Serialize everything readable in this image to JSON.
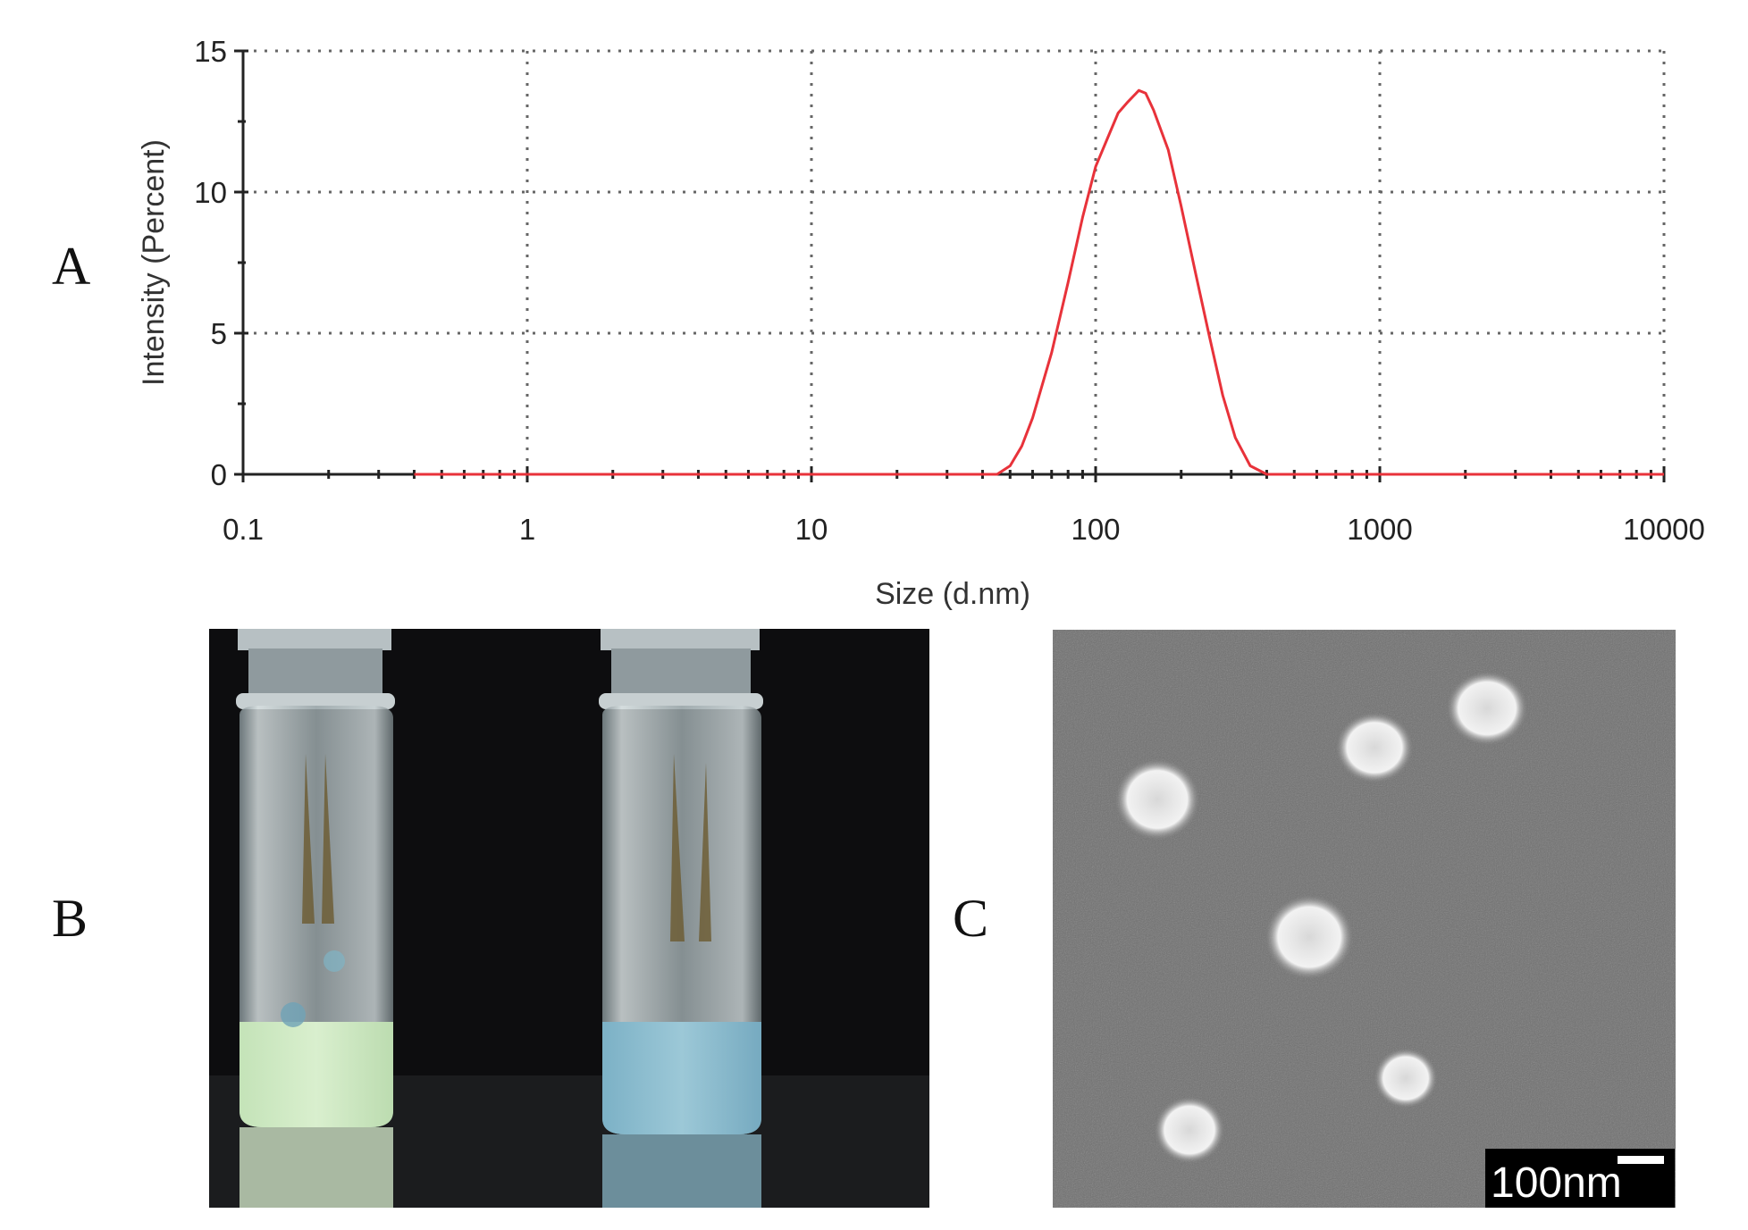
{
  "panels": {
    "a": "A",
    "b": "B",
    "c": "C"
  },
  "chart_data": {
    "type": "line",
    "title": "",
    "xlabel": "Size (d.nm)",
    "ylabel": "Intensity (Percent)",
    "xscale": "log",
    "xlim": [
      0.1,
      10000
    ],
    "ylim": [
      0,
      15
    ],
    "xticks": [
      0.1,
      1,
      10,
      100,
      1000,
      10000
    ],
    "xtick_labels": [
      "0.1",
      "1",
      "10",
      "100",
      "1000",
      "10000"
    ],
    "yticks": [
      0,
      5,
      10,
      15
    ],
    "ytick_labels": [
      "0",
      "5",
      "10",
      "15"
    ],
    "grid": true,
    "series": [
      {
        "name": "",
        "color": "#e8323a",
        "x": [
          0.4,
          45,
          50,
          55,
          60,
          70,
          80,
          90,
          100,
          110,
          120,
          130,
          142,
          150,
          160,
          180,
          200,
          225,
          250,
          280,
          310,
          350,
          400,
          450,
          10000
        ],
        "y": [
          0,
          0,
          0.3,
          1.0,
          2.0,
          4.3,
          6.8,
          9.1,
          10.9,
          11.9,
          12.8,
          13.2,
          13.6,
          13.5,
          12.9,
          11.5,
          9.5,
          7.1,
          5.0,
          2.8,
          1.3,
          0.3,
          0,
          0,
          0
        ]
      }
    ]
  },
  "scale_bar": {
    "label": "100nm"
  }
}
